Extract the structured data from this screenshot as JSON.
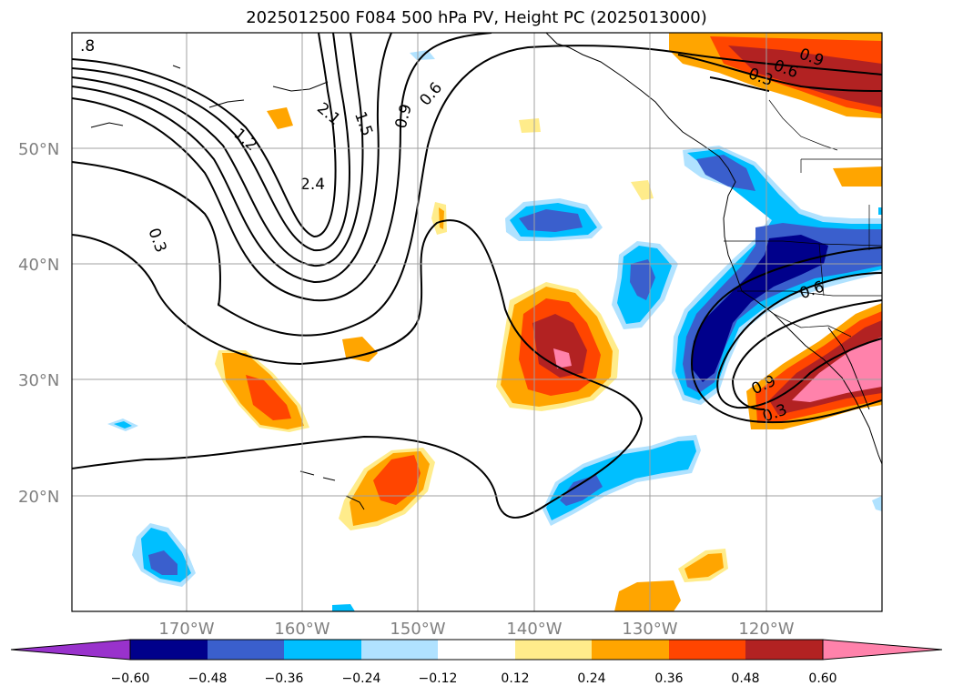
{
  "map": {
    "title": "2025012500 F084 500 hPa PV, Height PC (2025013000)",
    "lat_labels": [
      "50°N",
      "40°N",
      "30°N",
      "20°N"
    ],
    "lon_labels": [
      "170°W",
      "160°W",
      "150°W",
      "140°W",
      "130°W",
      "120°W"
    ],
    "contour_labels": [
      ".8",
      "2.1",
      "1.5",
      "0.9",
      "0.6",
      "1.2",
      "2.4",
      "0.3",
      "0.9",
      "0.6",
      "0.3",
      "0.6",
      "0.9",
      "0.3"
    ],
    "colorbar": {
      "ticks": [
        "−0.60",
        "−0.48",
        "−0.36",
        "−0.24",
        "−0.12",
        "0.12",
        "0.24",
        "0.36",
        "0.48",
        "0.60"
      ],
      "colors": [
        "#9932cc",
        "#00008b",
        "#3a5fcd",
        "#00bfff",
        "#b0e2ff",
        "#ffffff",
        "#ffec8b",
        "#ffa500",
        "#ff4500",
        "#b22222",
        "#ff82ab"
      ]
    }
  }
}
